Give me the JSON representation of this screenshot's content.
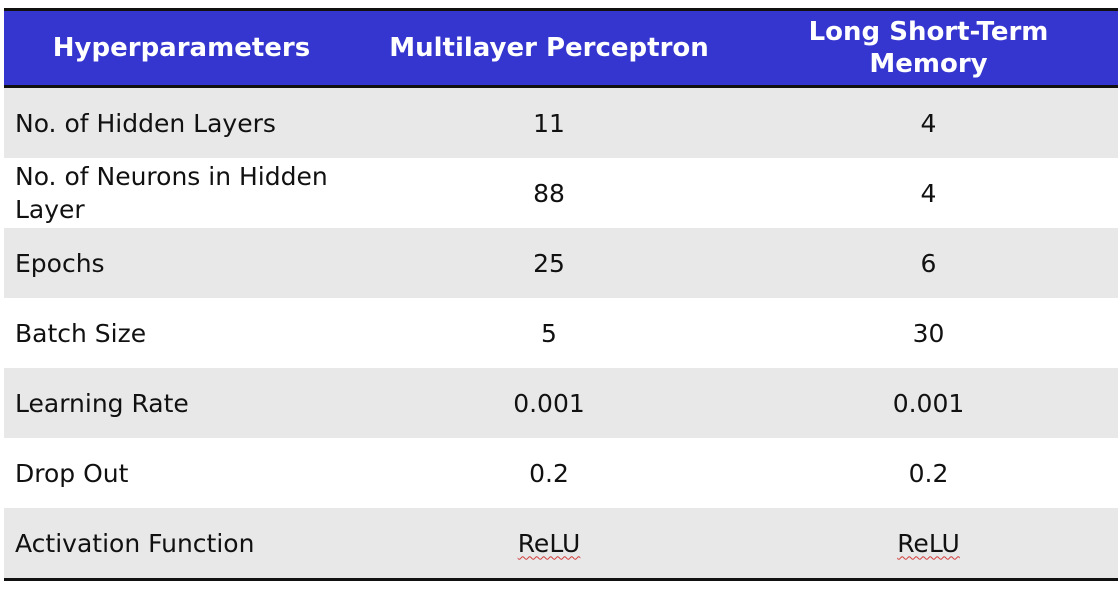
{
  "table": {
    "headers": [
      "Hyperparameters",
      "Multilayer Perceptron",
      "Long Short-Term Memory"
    ],
    "rows": [
      {
        "name": "No. of Hidden Layers",
        "mlp": "11",
        "lstm": "4"
      },
      {
        "name": "No. of Neurons in Hidden Layer",
        "mlp": "88",
        "lstm": "4"
      },
      {
        "name": "Epochs",
        "mlp": "25",
        "lstm": "6"
      },
      {
        "name": "Batch Size",
        "mlp": "5",
        "lstm": "30"
      },
      {
        "name": "Learning Rate",
        "mlp": "0.001",
        "lstm": "0.001"
      },
      {
        "name": "Drop Out",
        "mlp": "0.2",
        "lstm": "0.2"
      },
      {
        "name": "Activation Function",
        "mlp": "ReLU",
        "lstm": "ReLU"
      }
    ]
  },
  "colors": {
    "header_bg": "#3535d0",
    "header_text": "#ffffff",
    "row_shaded": "#e8e8e8",
    "row_plain": "#ffffff",
    "rule": "#111111",
    "spellcheck_underline": "#d23a3a"
  }
}
